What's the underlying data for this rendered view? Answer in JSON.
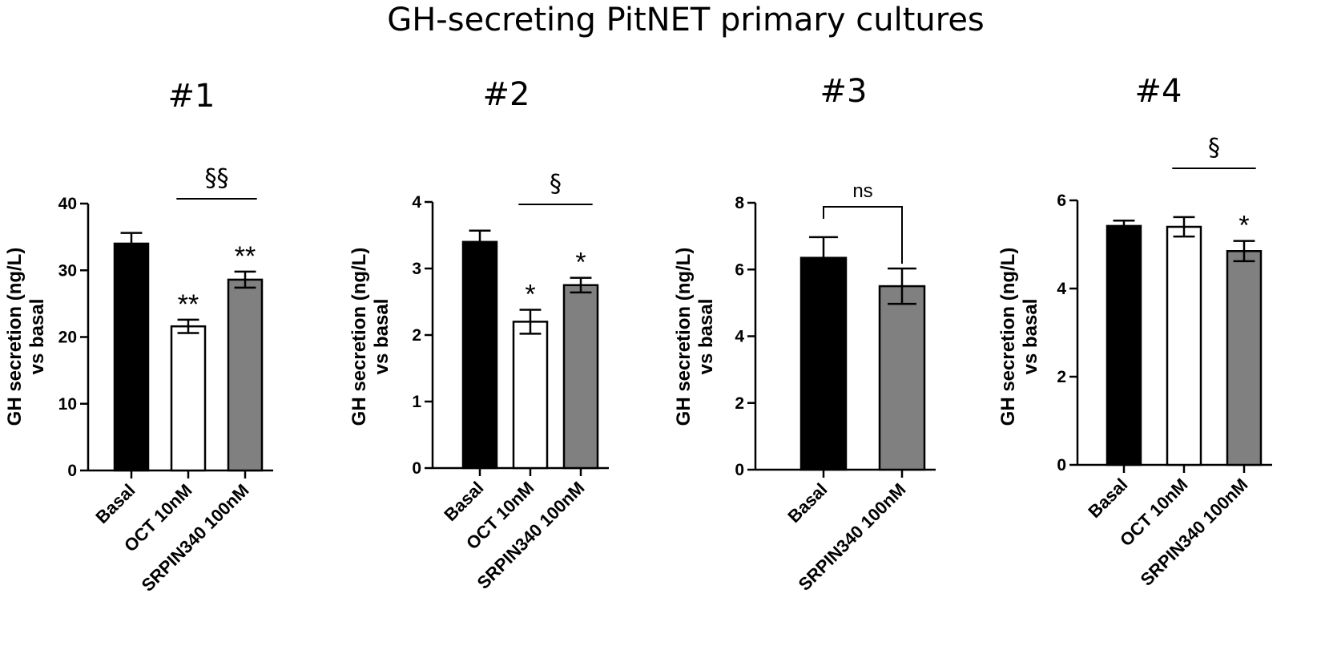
{
  "figure": {
    "title": "GH-secreting PitNET primary cultures"
  },
  "colors": {
    "basal": "#000000",
    "oct": "#ffffff",
    "srpin": "#808080",
    "stroke": "#000000"
  },
  "chart_data": [
    {
      "type": "bar",
      "title": "#1",
      "ylabel_line1": "GH secretion (ng/L)",
      "ylabel_line2": "vs basal",
      "ylim": [
        0,
        40
      ],
      "yticks": [
        0,
        10,
        20,
        30,
        40
      ],
      "categories": [
        "Basal",
        "OCT 10nM",
        "SRPIN340 100nM"
      ],
      "values": [
        34.0,
        21.6,
        28.6
      ],
      "errors": [
        1.6,
        1.0,
        1.2
      ],
      "fills": [
        "basal",
        "oct",
        "srpin"
      ],
      "bar_annotations": [
        "",
        "**",
        "**"
      ],
      "comparison": {
        "from": 1,
        "to": 2,
        "label": "§§",
        "style": "line"
      }
    },
    {
      "type": "bar",
      "title": "#2",
      "ylabel_line1": "GH secretion (ng/L)",
      "ylabel_line2": "vs basal",
      "ylim": [
        0,
        4
      ],
      "yticks": [
        0,
        1,
        2,
        3,
        4
      ],
      "categories": [
        "Basal",
        "OCT 10nM",
        "SRPIN340 100nM"
      ],
      "values": [
        3.4,
        2.2,
        2.75
      ],
      "errors": [
        0.17,
        0.18,
        0.11
      ],
      "fills": [
        "basal",
        "oct",
        "srpin"
      ],
      "bar_annotations": [
        "",
        "*",
        "*"
      ],
      "comparison": {
        "from": 1,
        "to": 2,
        "label": "§",
        "style": "line"
      }
    },
    {
      "type": "bar",
      "title": "#3",
      "ylabel_line1": "GH secretion (ng/L)",
      "ylabel_line2": "vs basal",
      "ylim": [
        0,
        8
      ],
      "yticks": [
        0,
        2,
        4,
        6,
        8
      ],
      "categories": [
        "Basal",
        "SRPIN340 100nM"
      ],
      "values": [
        6.35,
        5.5
      ],
      "errors": [
        0.62,
        0.53
      ],
      "fills": [
        "basal",
        "srpin"
      ],
      "bar_annotations": [
        "",
        ""
      ],
      "comparison": {
        "from": 0,
        "to": 1,
        "label": "ns",
        "style": "bracket"
      }
    },
    {
      "type": "bar",
      "title": "#4",
      "ylabel_line1": "GH secretion (ng/L)",
      "ylabel_line2": "vs basal",
      "ylim": [
        0,
        6
      ],
      "yticks": [
        0,
        2,
        4,
        6
      ],
      "categories": [
        "Basal",
        "OCT 10nM",
        "SRPIN340 100nM"
      ],
      "values": [
        5.42,
        5.4,
        4.85
      ],
      "errors": [
        0.12,
        0.22,
        0.23
      ],
      "fills": [
        "basal",
        "oct",
        "srpin"
      ],
      "bar_annotations": [
        "",
        "",
        "*"
      ],
      "comparison": {
        "from": 1,
        "to": 2,
        "label": "§",
        "style": "line"
      }
    }
  ]
}
